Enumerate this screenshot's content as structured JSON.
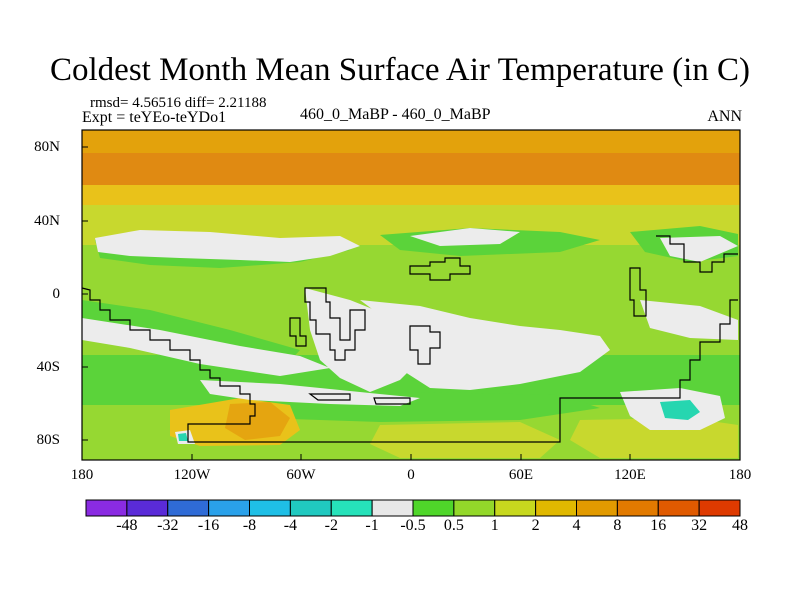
{
  "title": "Coldest Month Mean Surface Air Temperature (in C)",
  "stats": {
    "rmsd_line": "rmsd= 4.56516 diff= 2.21188",
    "expt_line": "Expt = teYEo-teYDo1"
  },
  "center_label": "460_0_MaBP - 460_0_MaBP",
  "season": "ANN",
  "y_ticks": [
    "80N",
    "40N",
    "0",
    "40S",
    "80S"
  ],
  "x_ticks": [
    "180",
    "120W",
    "60W",
    "0",
    "60E",
    "120E",
    "180"
  ],
  "colorbar": {
    "colors": [
      "#8a2be2",
      "#5a2bd8",
      "#2f6bd6",
      "#2aa1ea",
      "#1fbfe6",
      "#20c9c0",
      "#26e2ba",
      "#e8e8e8",
      "#4fd62a",
      "#93d82a",
      "#c7d81e",
      "#e0b800",
      "#e29a00",
      "#e27a00",
      "#e05a00",
      "#de3a00"
    ],
    "labels": [
      "-48",
      "-32",
      "-16",
      "-8",
      "-4",
      "-2",
      "-1",
      "-0.5",
      "0.5",
      "1",
      "2",
      "4",
      "8",
      "16",
      "32",
      "48"
    ]
  },
  "palette": {
    "band_n_dark": "#e08a12",
    "band_n_mid": "#e3a20c",
    "band_n_light": "#e9c21a",
    "yellow_green": "#c8d82e",
    "green": "#96d832",
    "bright_green": "#5bd33a",
    "white": "#ececec",
    "cyan": "#26d6b0",
    "orange_spot": "#e5a510"
  }
}
